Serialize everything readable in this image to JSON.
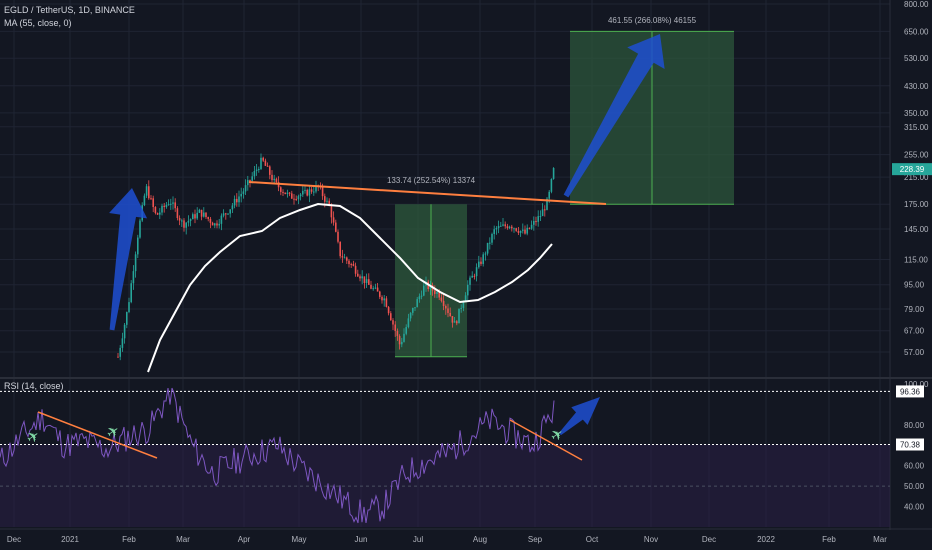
{
  "header": {
    "symbol_line": "EGLD / TetherUS, 1D, BINANCE",
    "ma_line": "MA (55, close, 0)",
    "rsi_line": "RSI (14, close)"
  },
  "colors": {
    "background": "#131722",
    "up": "#26a69a",
    "down": "#ef5350",
    "ma": "#ffffff",
    "rsi": "#7e57c2",
    "trendline": "#ff7f3f",
    "arrow": "#1e4fd1",
    "box": "#2e5a3c",
    "price_tag": "#26a69a"
  },
  "annotations": {
    "measure_1": "133.74 (252.54%) 13374",
    "measure_2": "461.55 (266.08%) 46155",
    "current_price": "228.39",
    "rsi_upper": "96.36",
    "rsi_lower": "70.38"
  },
  "chart_data": [
    {
      "type": "candlestick",
      "title": "EGLD / TetherUS, 1D, BINANCE",
      "scale": "log",
      "ylim": [
        50,
        800
      ],
      "y_ticks": [
        800,
        650,
        530,
        430,
        350,
        315,
        255,
        215,
        175,
        145,
        115,
        95,
        79,
        67,
        57
      ],
      "x_ticks": [
        "Dec",
        "2021",
        "Feb",
        "Mar",
        "Apr",
        "May",
        "Jun",
        "Jul",
        "Aug",
        "Sep",
        "Oct",
        "Nov",
        "Dec",
        "2022",
        "Feb",
        "Mar"
      ],
      "series": [
        {
          "name": "MA (55, close, 0)",
          "months": [
            "Feb",
            "Mar",
            "Apr",
            "May",
            "Jun",
            "Jul",
            "Aug",
            "Sep"
          ],
          "values": [
            52,
            100,
            140,
            185,
            130,
            90,
            88,
            138
          ]
        }
      ],
      "price_path": {
        "months": [
          "Jan",
          "Feb",
          "Mar",
          "Apr",
          "May",
          "Jun",
          "Jul",
          "Aug",
          "Sep"
        ],
        "close": [
          60,
          190,
          160,
          240,
          175,
          95,
          70,
          140,
          228.39
        ]
      }
    },
    {
      "type": "line",
      "title": "RSI (14, close)",
      "ylim": [
        30,
        100
      ],
      "y_ticks": [
        100,
        96.36,
        80,
        70.38,
        60,
        50,
        40
      ],
      "series": [
        {
          "name": "RSI (14, close)",
          "values": [
            62,
            74,
            84,
            70,
            72,
            68,
            74,
            78,
            96,
            70,
            56,
            62,
            66,
            70,
            60,
            52,
            44,
            36,
            40,
            56,
            62,
            66,
            74,
            82,
            76,
            70,
            88
          ]
        }
      ]
    }
  ]
}
